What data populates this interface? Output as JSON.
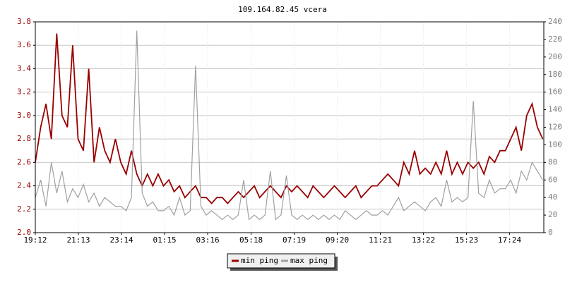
{
  "chart_data": {
    "type": "line",
    "title": "109.164.82.45 vcera",
    "x": [
      0,
      15,
      30,
      45,
      60,
      75,
      90,
      105,
      120,
      135,
      150,
      165,
      180,
      195,
      210,
      225,
      240,
      255,
      270,
      285,
      300,
      315,
      330,
      345,
      360,
      375,
      390,
      405,
      420,
      435,
      450,
      465,
      480,
      495,
      510,
      525,
      540,
      555,
      570,
      585,
      600,
      615,
      630,
      645,
      660,
      675,
      690,
      705,
      720,
      735,
      750,
      765,
      780,
      795,
      810,
      825,
      840,
      855,
      870,
      885,
      900,
      915,
      930,
      945,
      960,
      975,
      990,
      1005,
      1020,
      1035,
      1050,
      1065,
      1080,
      1095,
      1110,
      1125,
      1140,
      1155,
      1170,
      1185,
      1200,
      1215,
      1230,
      1245,
      1260,
      1275,
      1290,
      1305,
      1320,
      1335,
      1350,
      1365,
      1380,
      1395,
      1410,
      1425
    ],
    "series": [
      {
        "name": "min ping",
        "color": "#990000",
        "axis": "y",
        "values": [
          2.6,
          2.9,
          3.1,
          2.8,
          3.7,
          3.0,
          2.9,
          3.6,
          2.8,
          2.7,
          3.4,
          2.6,
          2.9,
          2.7,
          2.6,
          2.8,
          2.6,
          2.5,
          2.7,
          2.5,
          2.4,
          2.5,
          2.4,
          2.5,
          2.4,
          2.45,
          2.35,
          2.4,
          2.3,
          2.35,
          2.4,
          2.3,
          2.3,
          2.25,
          2.3,
          2.3,
          2.25,
          2.3,
          2.35,
          2.3,
          2.35,
          2.4,
          2.3,
          2.35,
          2.4,
          2.35,
          2.3,
          2.4,
          2.35,
          2.4,
          2.35,
          2.3,
          2.4,
          2.35,
          2.3,
          2.35,
          2.4,
          2.35,
          2.3,
          2.35,
          2.4,
          2.3,
          2.35,
          2.4,
          2.4,
          2.45,
          2.5,
          2.45,
          2.4,
          2.6,
          2.5,
          2.7,
          2.5,
          2.55,
          2.5,
          2.6,
          2.5,
          2.7,
          2.5,
          2.6,
          2.5,
          2.6,
          2.55,
          2.6,
          2.5,
          2.65,
          2.6,
          2.7,
          2.7,
          2.8,
          2.9,
          2.7,
          3.0,
          3.1,
          2.9,
          2.8
        ]
      },
      {
        "name": "max ping",
        "color": "#a0a0a0",
        "axis": "y2",
        "values": [
          40,
          60,
          30,
          80,
          45,
          70,
          35,
          50,
          40,
          55,
          35,
          45,
          30,
          40,
          35,
          30,
          30,
          25,
          40,
          230,
          45,
          30,
          35,
          25,
          25,
          30,
          20,
          40,
          20,
          25,
          190,
          30,
          20,
          25,
          20,
          15,
          20,
          15,
          20,
          60,
          15,
          20,
          15,
          20,
          70,
          15,
          20,
          65,
          20,
          15,
          20,
          15,
          20,
          15,
          20,
          15,
          20,
          15,
          25,
          20,
          15,
          20,
          25,
          20,
          20,
          25,
          20,
          30,
          40,
          25,
          30,
          35,
          30,
          25,
          35,
          40,
          30,
          60,
          35,
          40,
          35,
          40,
          150,
          45,
          40,
          60,
          45,
          50,
          50,
          60,
          45,
          70,
          60,
          80,
          70,
          60
        ]
      }
    ],
    "xlim": [
      0,
      1428
    ],
    "xticks": [
      {
        "value": 0,
        "label": "19:12"
      },
      {
        "value": 121,
        "label": "21:13"
      },
      {
        "value": 242,
        "label": "23:14"
      },
      {
        "value": 363,
        "label": "01:15"
      },
      {
        "value": 484,
        "label": "03:16"
      },
      {
        "value": 606,
        "label": "05:18"
      },
      {
        "value": 727,
        "label": "07:19"
      },
      {
        "value": 848,
        "label": "09:20"
      },
      {
        "value": 969,
        "label": "11:21"
      },
      {
        "value": 1090,
        "label": "13:22"
      },
      {
        "value": 1211,
        "label": "15:23"
      },
      {
        "value": 1332,
        "label": "17:24"
      }
    ],
    "ylim": [
      2.0,
      3.8
    ],
    "yticks": [
      {
        "value": 2,
        "label": "2.0"
      },
      2.2,
      2.4,
      2.6,
      2.8,
      {
        "value": 3,
        "label": "3.0"
      },
      3.2,
      3.4,
      3.6,
      3.8
    ],
    "y2lim": [
      0,
      240
    ],
    "y2ticks": [
      0,
      20,
      40,
      60,
      80,
      100,
      120,
      140,
      160,
      180,
      200,
      220,
      240
    ],
    "grid": true
  }
}
